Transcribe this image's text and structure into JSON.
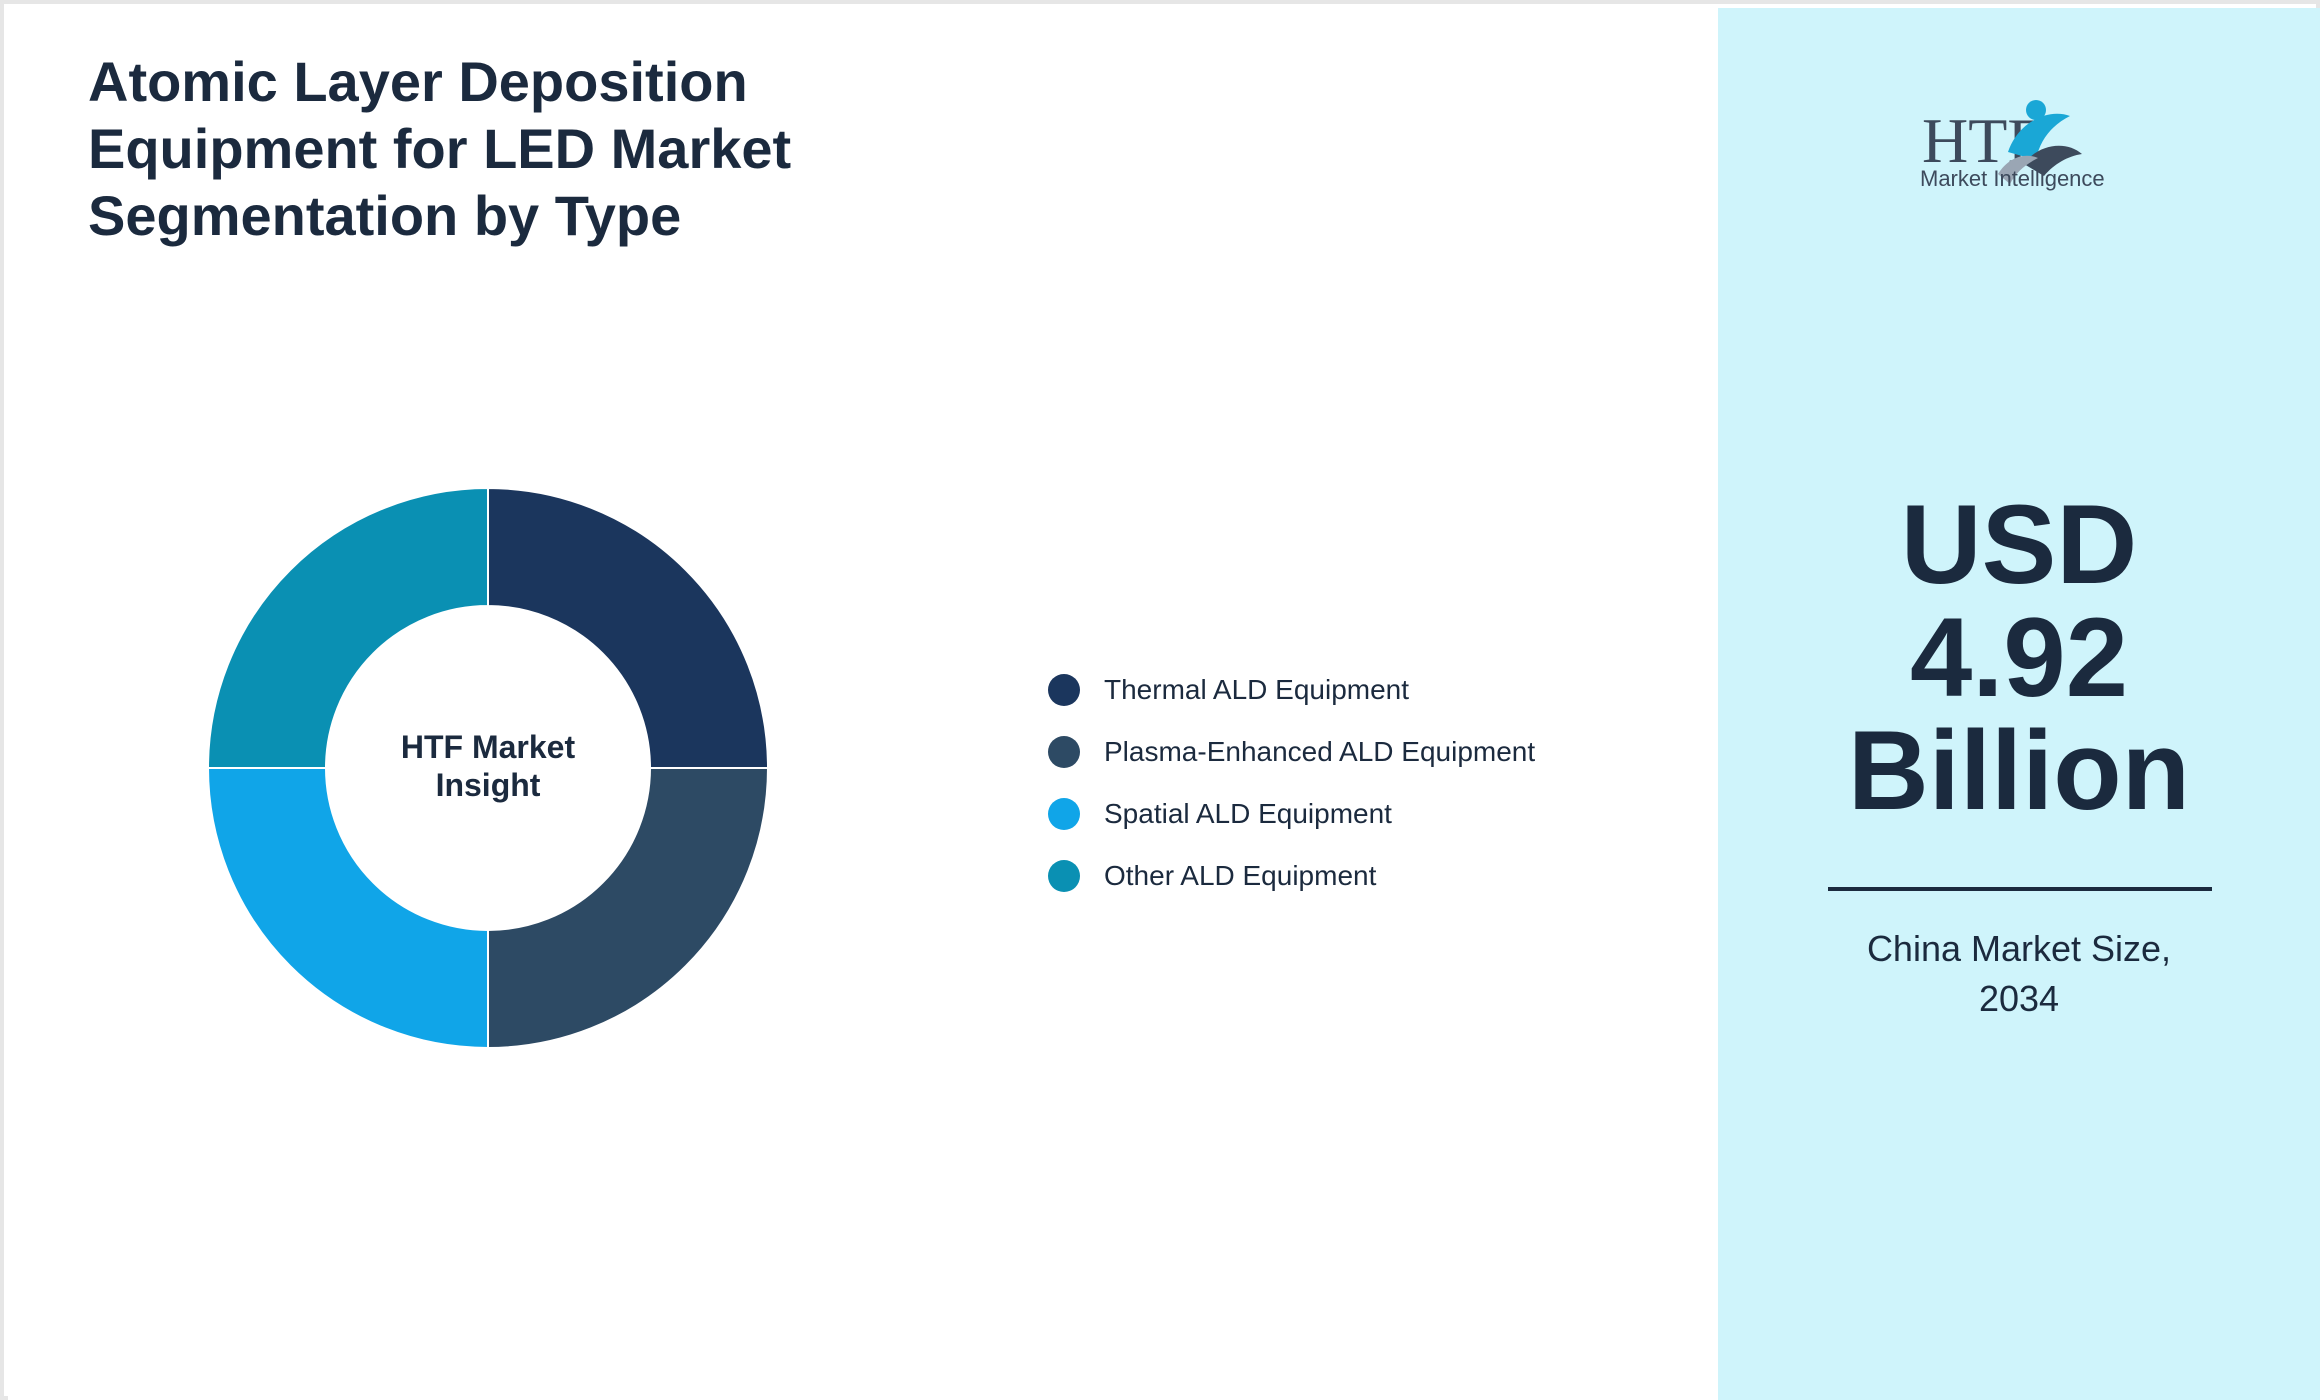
{
  "title": "Atomic Layer Deposition Equipment for LED Market Segmentation by Type",
  "chart_data": {
    "type": "pie",
    "variant": "donut",
    "center_label": [
      "HTF Market",
      "Insight"
    ],
    "categories": [
      "Thermal ALD Equipment",
      "Plasma-Enhanced ALD Equipment",
      "Spatial ALD Equipment",
      "Other ALD Equipment"
    ],
    "values": [
      25,
      25,
      25,
      25
    ],
    "colors": [
      "#1b365d",
      "#2d4a64",
      "#10a5e8",
      "#0a90b3"
    ],
    "legend_position": "right"
  },
  "sidebar": {
    "logo_mark": "HTF",
    "logo_tagline": "Market Intelligence",
    "value_lines": [
      "USD",
      "4.92",
      "Billion"
    ],
    "caption_lines": [
      "China Market Size,",
      "2034"
    ],
    "background": "#cff4fb",
    "text_color": "#1b2a3e"
  }
}
